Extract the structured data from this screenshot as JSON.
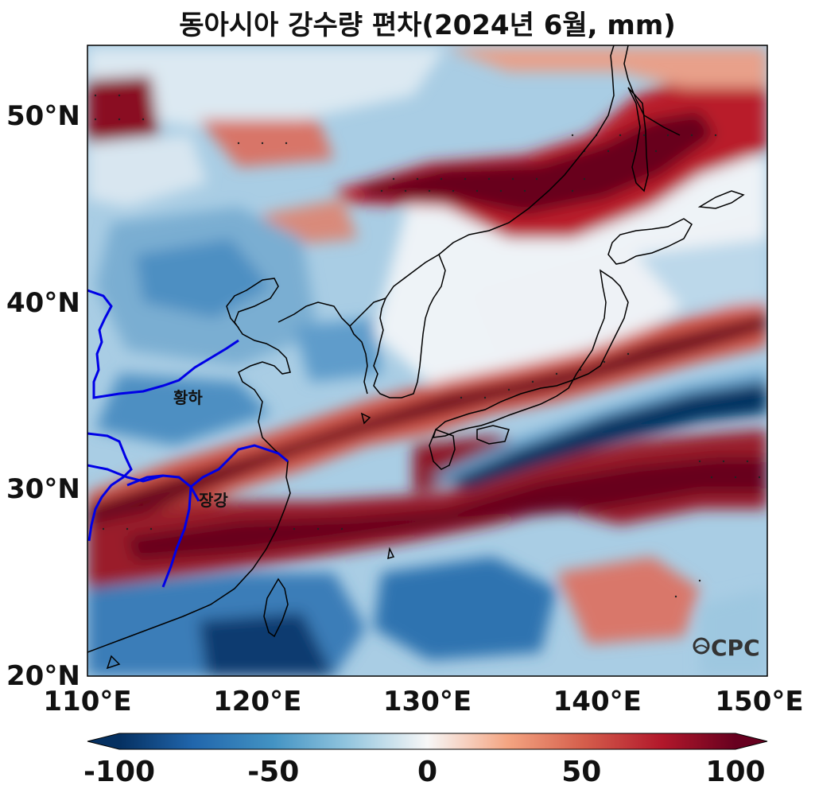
{
  "title": "동아시아 강수량 편차(2024년 6월, mm)",
  "map": {
    "lon_range": [
      110,
      150
    ],
    "lat_range": [
      20,
      53.8
    ],
    "lon_ticks": [
      {
        "value": 110,
        "label": "110°E"
      },
      {
        "value": 120,
        "label": "120°E"
      },
      {
        "value": 130,
        "label": "130°E"
      },
      {
        "value": 140,
        "label": "140°E"
      },
      {
        "value": 150,
        "label": "150°E"
      }
    ],
    "lat_ticks": [
      {
        "value": 20,
        "label": "20°N"
      },
      {
        "value": 30,
        "label": "30°N"
      },
      {
        "value": 40,
        "label": "40°N"
      },
      {
        "value": 50,
        "label": "50°N"
      }
    ],
    "rivers": [
      {
        "label": "황하",
        "label_lon": 114.9,
        "label_lat": 34.8
      },
      {
        "label": "장강",
        "label_lon": 116.3,
        "label_lat": 29.5
      }
    ],
    "logo": "CPC",
    "colors": {
      "strong_positive": "#67001f",
      "positive": "#d6604d",
      "weak_positive": "#f4a582",
      "neutral": "#f7f7f7",
      "weak_negative": "#92c5de",
      "negative": "#4393c3",
      "strong_negative": "#053061",
      "river": "#0000e6",
      "coastline": "#000000"
    }
  },
  "colorbar": {
    "range": [
      -100,
      100
    ],
    "ticks": [
      {
        "value": -100,
        "label": "-100"
      },
      {
        "value": -50,
        "label": "-50"
      },
      {
        "value": 0,
        "label": "0"
      },
      {
        "value": 50,
        "label": "50"
      },
      {
        "value": 100,
        "label": "100"
      }
    ],
    "extend": "both"
  }
}
